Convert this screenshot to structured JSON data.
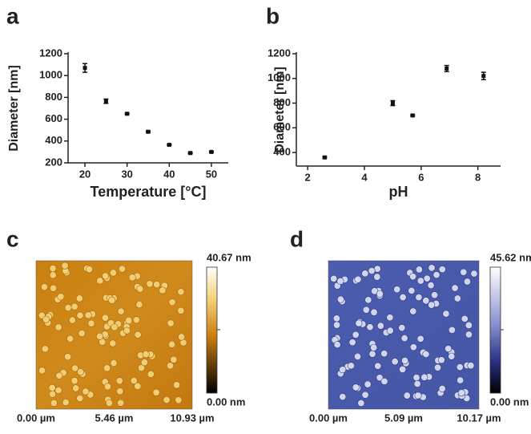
{
  "chart_data": [
    {
      "type": "scatter",
      "panel": "a",
      "xlabel": "Temperature [°C]",
      "ylabel": "Diameter [nm]",
      "x": [
        20,
        25,
        30,
        35,
        40,
        45,
        50
      ],
      "values": [
        1070,
        765,
        650,
        485,
        365,
        290,
        300
      ],
      "errors": [
        40,
        20,
        6,
        6,
        6,
        6,
        6
      ],
      "xlim": [
        16,
        54
      ],
      "xticks": [
        20,
        30,
        40,
        50
      ],
      "ylim": [
        200,
        1200
      ],
      "yticks": [
        200,
        400,
        600,
        800,
        1000,
        1200
      ],
      "color": "#111111"
    },
    {
      "type": "scatter",
      "panel": "b",
      "xlabel": "pH",
      "ylabel": "Diameter [nm]",
      "x": [
        2.6,
        5.0,
        5.7,
        6.9,
        8.2
      ],
      "values": [
        360,
        800,
        700,
        1080,
        1020
      ],
      "errors": [
        6,
        20,
        6,
        25,
        30
      ],
      "xlim": [
        1.6,
        8.8
      ],
      "xticks": [
        2,
        4,
        6,
        8
      ],
      "ylim": [
        290,
        1200
      ],
      "yticks": [
        400,
        600,
        800,
        1000,
        1200
      ],
      "color": "#111111"
    }
  ],
  "images": [
    {
      "panel": "c",
      "scale_max": "40.67 nm",
      "scale_min": "0.00 nm",
      "x_labels": [
        "0.00 µm",
        "5.46 µm",
        "10.93 µm"
      ]
    },
    {
      "panel": "d",
      "scale_max": "45.62 nm",
      "scale_min": "0.00 nm",
      "x_labels": [
        "0.00 µm",
        "5.09 µm",
        "10.17 µm"
      ]
    }
  ]
}
